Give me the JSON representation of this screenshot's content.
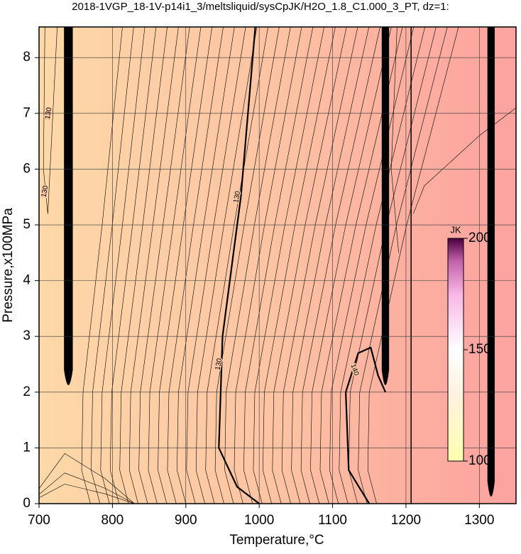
{
  "chart_data": {
    "type": "contour",
    "title": "2018-1VGP_18-1V-p14i1_3/meltsliquid/sysCpJK/H2O_1.8_C1.000_3_PT, dz=1:",
    "x_label": "Temperature,°C",
    "y_label": "Pressure,x100MPa",
    "xlim": [
      700,
      1350
    ],
    "ylim": [
      0,
      8.55
    ],
    "xticks": [
      700,
      800,
      900,
      1000,
      1100,
      1200,
      1300
    ],
    "yticks": [
      0,
      1,
      2,
      3,
      4,
      5,
      6,
      7,
      8
    ],
    "grid": true,
    "contour_labels": [
      "130",
      "130",
      "130",
      "130",
      "140"
    ],
    "colorbar": {
      "label": "JK",
      "lim": [
        100,
        200
      ],
      "ticks": [
        100,
        150,
        200
      ]
    }
  }
}
